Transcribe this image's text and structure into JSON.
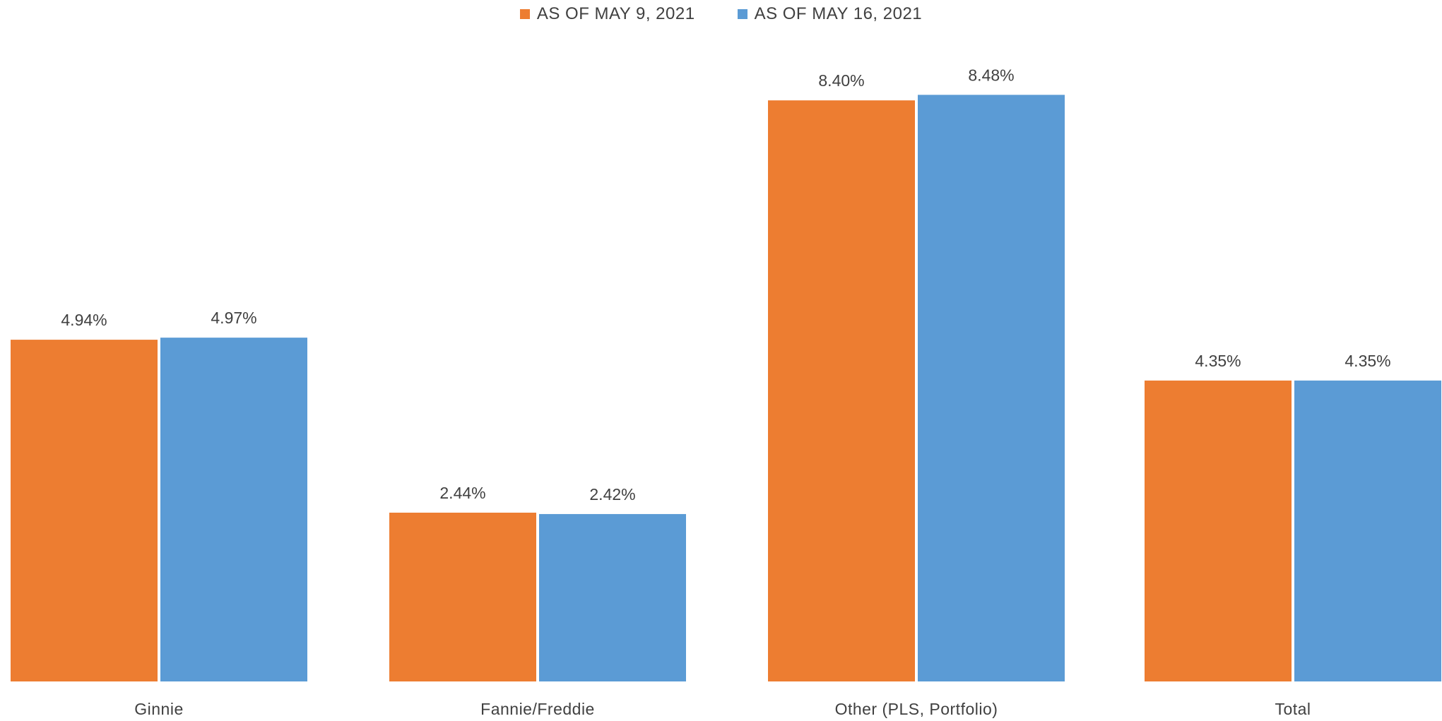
{
  "chart_data": {
    "type": "bar",
    "categories": [
      "Ginnie",
      "Fannie/Freddie",
      "Other (PLS, Portfolio)",
      "Total"
    ],
    "series": [
      {
        "name": "AS OF MAY 9, 2021",
        "color": "#ED7D31",
        "values": [
          4.94,
          2.44,
          8.4,
          4.35
        ],
        "labels": [
          "4.94%",
          "2.44%",
          "8.40%",
          "4.35%"
        ]
      },
      {
        "name": "AS OF MAY 16, 2021",
        "color": "#5B9BD5",
        "values": [
          4.97,
          2.42,
          8.48,
          4.35
        ],
        "labels": [
          "4.97%",
          "2.42%",
          "8.48%",
          "4.35%"
        ]
      }
    ],
    "title": "",
    "xlabel": "",
    "ylabel": "",
    "ylim": [
      0,
      9.8
    ],
    "grid": false,
    "legend_position": "top-center"
  }
}
